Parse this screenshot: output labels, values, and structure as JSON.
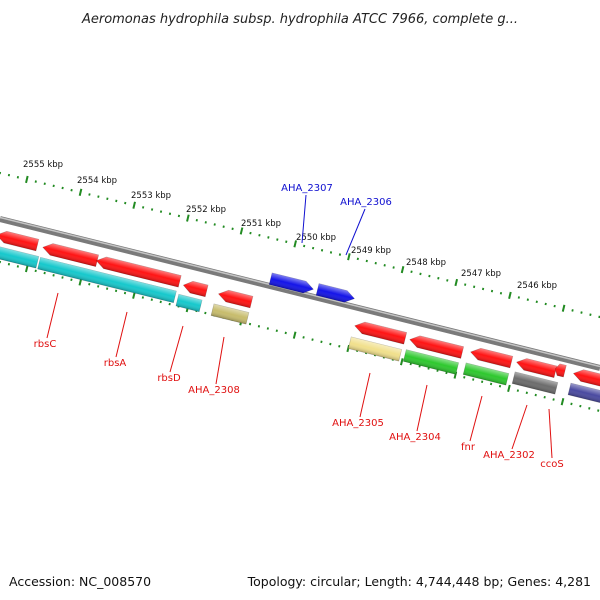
{
  "header": {
    "title": "Aeromonas hydrophila subsp. hydrophila ATCC 7966, complete g..."
  },
  "footer": {
    "accession": "Accession: NC_008570",
    "stats": "Topology: circular; Length: 4,744,448 bp; Genes: 4,281"
  },
  "colors": {
    "red": "#ff1414",
    "cyan": "#16c8cc",
    "khaki": "#c7bc6c",
    "blue": "#1414e8",
    "pale_yellow": "#f1e08c",
    "green": "#2ec82e",
    "gray": "#6c6c6c",
    "navy": "#4a4aa0",
    "label_red": "#e01010",
    "label_blue": "#1010d0",
    "ticks": "#228b22",
    "backbone": "#888888"
  },
  "scale": {
    "labels": [
      "2555 kbp",
      "2554 kbp",
      "2553 kbp",
      "2552 kbp",
      "2551 kbp",
      "2550 kbp",
      "2549 kbp",
      "2548 kbp",
      "2547 kbp",
      "2546 kbp"
    ]
  },
  "genes": [
    {
      "label": "rbsC",
      "label_color": "label_red"
    },
    {
      "label": "rbsA",
      "label_color": "label_red"
    },
    {
      "label": "rbsD",
      "label_color": "label_red"
    },
    {
      "label": "AHA_2308",
      "label_color": "label_red"
    },
    {
      "label": "AHA_2307",
      "label_color": "label_blue"
    },
    {
      "label": "AHA_2306",
      "label_color": "label_blue"
    },
    {
      "label": "AHA_2305",
      "label_color": "label_red"
    },
    {
      "label": "AHA_2304",
      "label_color": "label_red"
    },
    {
      "label": "fnr",
      "label_color": "label_red"
    },
    {
      "label": "AHA_2302",
      "label_color": "label_red"
    },
    {
      "label": "ccoS",
      "label_color": "label_red"
    }
  ]
}
